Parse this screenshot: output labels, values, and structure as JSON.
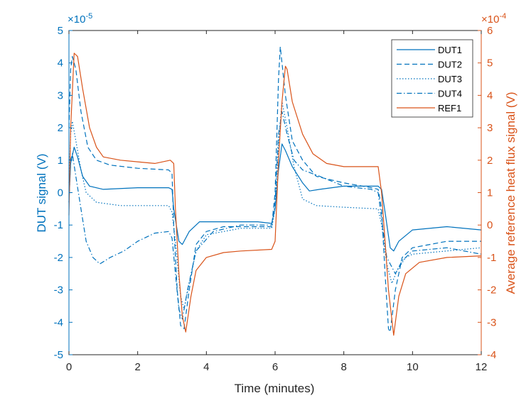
{
  "chart_data": {
    "type": "line",
    "title": "",
    "xlabel": "Time (minutes)",
    "ylabel_left": "DUT signal (V)",
    "ylabel_right": "Average reference heat flux signal (V)",
    "exponent_left": "×10",
    "exponent_left_power": "-5",
    "exponent_right": "×10",
    "exponent_right_power": "-4",
    "xlim": [
      0,
      12
    ],
    "ylim_left": [
      -5,
      5
    ],
    "ylim_right": [
      -4,
      6
    ],
    "x_ticks": [
      "0",
      "2",
      "4",
      "6",
      "8",
      "10",
      "12"
    ],
    "y_left_ticks": [
      "5",
      "4",
      "3",
      "2",
      "1",
      "0",
      "-1",
      "-2",
      "-3",
      "-4",
      "-5"
    ],
    "y_right_ticks": [
      "6",
      "5",
      "4",
      "3",
      "2",
      "1",
      "0",
      "-1",
      "-2",
      "-3",
      "-4"
    ],
    "grid": false,
    "legend_position": "top-right",
    "colors": {
      "left": "#0072BD",
      "right": "#D95319",
      "axis": "#262626"
    },
    "series": [
      {
        "name": "DUT1",
        "axis": "left",
        "color": "#0072BD",
        "style": "solid",
        "points": [
          [
            0,
            -0.3
          ],
          [
            0.05,
            0.9
          ],
          [
            0.15,
            1.4
          ],
          [
            0.25,
            1.1
          ],
          [
            0.4,
            0.5
          ],
          [
            0.6,
            0.2
          ],
          [
            1,
            0.1
          ],
          [
            2,
            0.15
          ],
          [
            2.9,
            0.15
          ],
          [
            3.0,
            0.1
          ],
          [
            3.05,
            -0.5
          ],
          [
            3.2,
            -1.5
          ],
          [
            3.3,
            -1.6
          ],
          [
            3.5,
            -1.2
          ],
          [
            3.8,
            -0.9
          ],
          [
            4.5,
            -0.9
          ],
          [
            5.5,
            -0.9
          ],
          [
            5.9,
            -0.95
          ],
          [
            6.0,
            -0.5
          ],
          [
            6.1,
            0.7
          ],
          [
            6.2,
            1.5
          ],
          [
            6.3,
            1.3
          ],
          [
            6.5,
            0.8
          ],
          [
            6.8,
            0.3
          ],
          [
            7.0,
            0.05
          ],
          [
            7.3,
            0.1
          ],
          [
            8,
            0.2
          ],
          [
            9,
            0.2
          ],
          [
            9.1,
            0.1
          ],
          [
            9.2,
            -0.6
          ],
          [
            9.35,
            -1.7
          ],
          [
            9.45,
            -1.8
          ],
          [
            9.6,
            -1.5
          ],
          [
            10,
            -1.15
          ],
          [
            11,
            -1.05
          ],
          [
            12,
            -1.15
          ]
        ]
      },
      {
        "name": "DUT2",
        "axis": "left",
        "color": "#0072BD",
        "style": "dashed",
        "points": [
          [
            0,
            2
          ],
          [
            0.05,
            3.8
          ],
          [
            0.1,
            4.2
          ],
          [
            0.2,
            3.8
          ],
          [
            0.35,
            2.5
          ],
          [
            0.55,
            1.4
          ],
          [
            0.8,
            1.0
          ],
          [
            1.2,
            0.85
          ],
          [
            2,
            0.75
          ],
          [
            2.9,
            0.7
          ],
          [
            3.0,
            0.6
          ],
          [
            3.05,
            -1
          ],
          [
            3.15,
            -3
          ],
          [
            3.25,
            -4.1
          ],
          [
            3.35,
            -4.2
          ],
          [
            3.5,
            -3
          ],
          [
            3.7,
            -1.6
          ],
          [
            4,
            -1.2
          ],
          [
            4.5,
            -1.05
          ],
          [
            5,
            -1.05
          ],
          [
            5.9,
            -1.05
          ],
          [
            6.0,
            0
          ],
          [
            6.1,
            3.5
          ],
          [
            6.15,
            4.5
          ],
          [
            6.3,
            3
          ],
          [
            6.5,
            1.6
          ],
          [
            6.8,
            1.0
          ],
          [
            7.2,
            0.5
          ],
          [
            8,
            0.3
          ],
          [
            8.8,
            0.15
          ],
          [
            9.0,
            0.1
          ],
          [
            9.1,
            -0.5
          ],
          [
            9.2,
            -2.5
          ],
          [
            9.3,
            -4.2
          ],
          [
            9.35,
            -4.3
          ],
          [
            9.5,
            -3
          ],
          [
            9.7,
            -2
          ],
          [
            10,
            -1.7
          ],
          [
            11,
            -1.5
          ],
          [
            12,
            -1.5
          ]
        ]
      },
      {
        "name": "DUT3",
        "axis": "left",
        "color": "#0072BD",
        "style": "dotted",
        "points": [
          [
            0,
            0.3
          ],
          [
            0.05,
            1.8
          ],
          [
            0.1,
            2.2
          ],
          [
            0.2,
            1.6
          ],
          [
            0.35,
            0.7
          ],
          [
            0.5,
            0
          ],
          [
            0.8,
            -0.3
          ],
          [
            1.5,
            -0.4
          ],
          [
            2,
            -0.4
          ],
          [
            2.9,
            -0.4
          ],
          [
            3.0,
            -0.6
          ],
          [
            3.1,
            -1.5
          ],
          [
            3.25,
            -3.2
          ],
          [
            3.35,
            -3.6
          ],
          [
            3.5,
            -2.8
          ],
          [
            3.7,
            -1.8
          ],
          [
            4,
            -1.3
          ],
          [
            5,
            -1.1
          ],
          [
            5.9,
            -1.1
          ],
          [
            6.0,
            -0.5
          ],
          [
            6.1,
            1.5
          ],
          [
            6.2,
            2.8
          ],
          [
            6.35,
            2
          ],
          [
            6.55,
            0.8
          ],
          [
            6.8,
            -0.2
          ],
          [
            7.2,
            -0.4
          ],
          [
            8,
            -0.45
          ],
          [
            9.0,
            -0.5
          ],
          [
            9.1,
            -1
          ],
          [
            9.25,
            -2.2
          ],
          [
            9.4,
            -2.8
          ],
          [
            9.55,
            -2.4
          ],
          [
            9.8,
            -2.0
          ],
          [
            10,
            -1.9
          ],
          [
            12,
            -1.7
          ]
        ]
      },
      {
        "name": "DUT4",
        "axis": "left",
        "color": "#0072BD",
        "style": "dashdot",
        "points": [
          [
            0,
            -0.3
          ],
          [
            0.05,
            1
          ],
          [
            0.1,
            1.2
          ],
          [
            0.2,
            0.5
          ],
          [
            0.35,
            -0.5
          ],
          [
            0.5,
            -1.5
          ],
          [
            0.7,
            -2.0
          ],
          [
            0.9,
            -2.2
          ],
          [
            1.2,
            -2.0
          ],
          [
            1.6,
            -1.8
          ],
          [
            2,
            -1.5
          ],
          [
            2.5,
            -1.25
          ],
          [
            2.9,
            -1.2
          ],
          [
            3.0,
            -1.4
          ],
          [
            3.1,
            -2.5
          ],
          [
            3.2,
            -3.6
          ],
          [
            3.3,
            -3.9
          ],
          [
            3.45,
            -3.0
          ],
          [
            3.7,
            -1.8
          ],
          [
            4.2,
            -1.2
          ],
          [
            5,
            -1.0
          ],
          [
            5.9,
            -1.0
          ],
          [
            6.0,
            -0.3
          ],
          [
            6.1,
            1.8
          ],
          [
            6.2,
            2.5
          ],
          [
            6.35,
            1.8
          ],
          [
            6.55,
            1.0
          ],
          [
            6.8,
            0.7
          ],
          [
            7.3,
            0.5
          ],
          [
            8,
            0.2
          ],
          [
            8.8,
            0.1
          ],
          [
            9.0,
            0
          ],
          [
            9.1,
            -0.8
          ],
          [
            9.25,
            -2.0
          ],
          [
            9.35,
            -2.2
          ],
          [
            9.5,
            -2.5
          ],
          [
            9.7,
            -2.1
          ],
          [
            10,
            -1.8
          ],
          [
            11,
            -1.7
          ],
          [
            12,
            -1.9
          ]
        ]
      },
      {
        "name": "REF1",
        "axis": "right",
        "color": "#D95319",
        "style": "solid",
        "points": [
          [
            0,
            0.3
          ],
          [
            0.05,
            3
          ],
          [
            0.15,
            5.3
          ],
          [
            0.25,
            5.2
          ],
          [
            0.4,
            4.2
          ],
          [
            0.6,
            3
          ],
          [
            0.8,
            2.4
          ],
          [
            1.0,
            2.1
          ],
          [
            1.5,
            2.0
          ],
          [
            2,
            1.95
          ],
          [
            2.5,
            1.9
          ],
          [
            2.95,
            2.0
          ],
          [
            3.05,
            1.9
          ],
          [
            3.1,
            0.5
          ],
          [
            3.2,
            -1.5
          ],
          [
            3.3,
            -2.8
          ],
          [
            3.4,
            -3.3
          ],
          [
            3.55,
            -2.2
          ],
          [
            3.7,
            -1.4
          ],
          [
            4,
            -1.0
          ],
          [
            4.5,
            -0.85
          ],
          [
            5,
            -0.8
          ],
          [
            5.9,
            -0.75
          ],
          [
            6.0,
            -0.5
          ],
          [
            6.1,
            2
          ],
          [
            6.2,
            3.8
          ],
          [
            6.3,
            4.9
          ],
          [
            6.35,
            4.8
          ],
          [
            6.5,
            3.8
          ],
          [
            6.8,
            2.8
          ],
          [
            7.1,
            2.2
          ],
          [
            7.5,
            1.9
          ],
          [
            8,
            1.8
          ],
          [
            9.0,
            1.8
          ],
          [
            9.1,
            1.0
          ],
          [
            9.2,
            -0.5
          ],
          [
            9.3,
            -2.0
          ],
          [
            9.45,
            -3.4
          ],
          [
            9.6,
            -2.2
          ],
          [
            9.8,
            -1.5
          ],
          [
            10.2,
            -1.15
          ],
          [
            11,
            -1.0
          ],
          [
            12,
            -0.95
          ]
        ]
      }
    ]
  }
}
